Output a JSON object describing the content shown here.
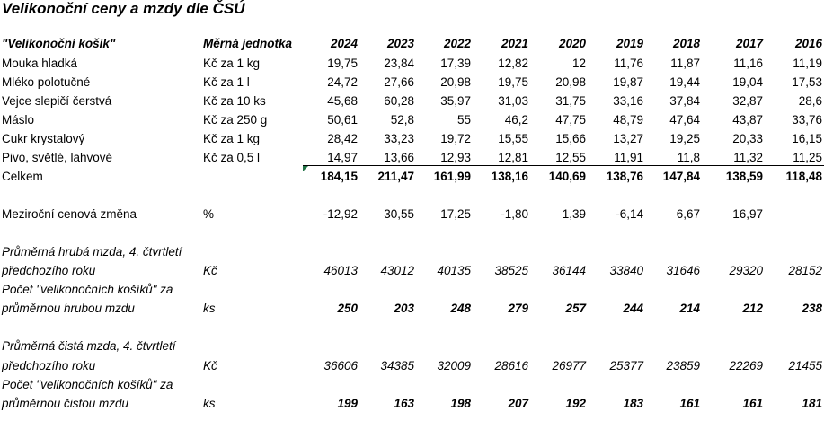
{
  "title": "Velikonoční ceny a mzdy dle ČSÚ",
  "header": {
    "label": "\"Velikonoční košík\"",
    "unit": "Měrná jednotka",
    "years": [
      "2024",
      "2023",
      "2022",
      "2021",
      "2020",
      "2019",
      "2018",
      "2017",
      "2016"
    ]
  },
  "items": [
    {
      "name": "Mouka hladká",
      "unit": "Kč za 1 kg",
      "values": [
        "19,75",
        "23,84",
        "17,39",
        "12,82",
        "12",
        "11,76",
        "11,87",
        "11,16",
        "11,19"
      ]
    },
    {
      "name": "Mléko polotučné",
      "unit": "Kč za 1 l",
      "values": [
        "24,72",
        "27,66",
        "20,98",
        "19,75",
        "20,98",
        "19,87",
        "19,44",
        "19,04",
        "17,53"
      ]
    },
    {
      "name": "Vejce slepičí čerstvá",
      "unit": "Kč za 10 ks",
      "values": [
        "45,68",
        "60,28",
        "35,97",
        "31,03",
        "31,75",
        "33,16",
        "37,84",
        "32,87",
        "28,6"
      ]
    },
    {
      "name": "Máslo",
      "unit": "Kč za 250 g",
      "values": [
        "50,61",
        "52,8",
        "55",
        "46,2",
        "47,75",
        "48,79",
        "47,64",
        "43,87",
        "33,76"
      ]
    },
    {
      "name": "Cukr krystalový",
      "unit": "Kč za 1 kg",
      "values": [
        "28,42",
        "33,23",
        "19,72",
        "15,55",
        "15,66",
        "13,27",
        "19,25",
        "20,33",
        "16,15"
      ]
    },
    {
      "name": "Pivo, světlé, lahvové",
      "unit": "Kč za 0,5 l",
      "values": [
        "14,97",
        "13,66",
        "12,93",
        "12,81",
        "12,55",
        "11,91",
        "11,8",
        "11,32",
        "11,25"
      ]
    }
  ],
  "total": {
    "name": "Celkem",
    "values": [
      "184,15",
      "211,47",
      "161,99",
      "138,16",
      "140,69",
      "138,76",
      "147,84",
      "138,59",
      "118,48"
    ]
  },
  "change": {
    "name": "Meziroční cenová změna",
    "unit": "%",
    "values": [
      "-12,92",
      "30,55",
      "17,25",
      "-1,80",
      "1,39",
      "-6,14",
      "6,67",
      "16,97",
      ""
    ]
  },
  "gross_wage": {
    "line1": "Průměrná hrubá mzda, 4. čtvrtletí",
    "line2": "předchozího roku",
    "unit": "Kč",
    "values": [
      "46013",
      "43012",
      "40135",
      "38525",
      "36144",
      "33840",
      "31646",
      "29320",
      "28152"
    ]
  },
  "gross_baskets": {
    "line1": "Počet \"velikonočních košíků\" za",
    "line2": "průměrnou hrubou mzdu",
    "unit": "ks",
    "values": [
      "250",
      "203",
      "248",
      "279",
      "257",
      "244",
      "214",
      "212",
      "238"
    ]
  },
  "net_wage": {
    "line1": "Průměrná čistá mzda, 4. čtvrtletí",
    "line2": "předchozího roku",
    "unit": "Kč",
    "values": [
      "36606",
      "34385",
      "32009",
      "28616",
      "26977",
      "25377",
      "23859",
      "22269",
      "21455"
    ]
  },
  "net_baskets": {
    "line1": "Počet \"velikonočních košíků\" za",
    "line2": "průměrnou čistou mzdu",
    "unit": "ks",
    "values": [
      "199",
      "163",
      "198",
      "207",
      "192",
      "183",
      "161",
      "161",
      "181"
    ]
  }
}
